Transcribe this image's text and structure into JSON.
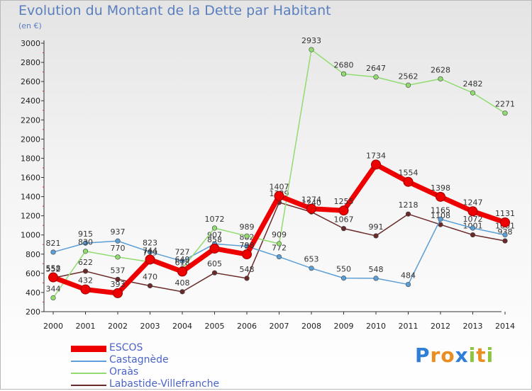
{
  "header": {
    "title": "Evolution du Montant de la Dette par Habitant",
    "subtitle": "(en €)"
  },
  "chart_data": {
    "type": "line",
    "title": "Evolution du Montant de la Dette par Habitant",
    "subtitle": "(en €)",
    "xlabel": "",
    "ylabel": "",
    "x": [
      2000,
      2001,
      2002,
      2003,
      2004,
      2005,
      2006,
      2007,
      2008,
      2009,
      2010,
      2011,
      2012,
      2013,
      2014
    ],
    "y_ticks": [
      200,
      400,
      600,
      800,
      1000,
      1200,
      1400,
      1600,
      1800,
      2000,
      2200,
      2400,
      2600,
      2800,
      3000
    ],
    "ylim": [
      200,
      3000
    ],
    "grid": false,
    "legend_position": "bottom-left",
    "series": [
      {
        "name": "ESCOS",
        "color": "#ee0000",
        "values": [
          558,
          432,
          393,
          744,
          618,
          858,
          798,
          1407,
          1274,
          1255,
          1734,
          1554,
          1398,
          1247,
          1131
        ]
      },
      {
        "name": "Castagnède",
        "color": "#5c9ed6",
        "values": [
          821,
          915,
          937,
          823,
          727,
          907,
          882,
          772,
          653,
          550,
          548,
          484,
          1165,
          1072,
          1001
        ]
      },
      {
        "name": "Oraàs",
        "color": "#90dc70",
        "values": [
          344,
          830,
          770,
          719,
          649,
          1072,
          989,
          909,
          2933,
          2680,
          2647,
          2562,
          2628,
          2482,
          2271
        ]
      },
      {
        "name": "Labastide-Villefranche",
        "color": "#6b2a2a",
        "values": [
          552,
          622,
          537,
          470,
          408,
          605,
          548,
          1339,
          1240,
          1067,
          991,
          1218,
          1108,
          1001,
          938
        ]
      }
    ]
  },
  "logo": {
    "letters": [
      "P",
      "r",
      "o",
      "x",
      "i",
      "t",
      "i"
    ],
    "colors": [
      "#2f7fd6",
      "#e98f22",
      "#e98f22",
      "#2f7fd6",
      "#8cc63f",
      "#e98f22",
      "#8cc63f"
    ]
  }
}
